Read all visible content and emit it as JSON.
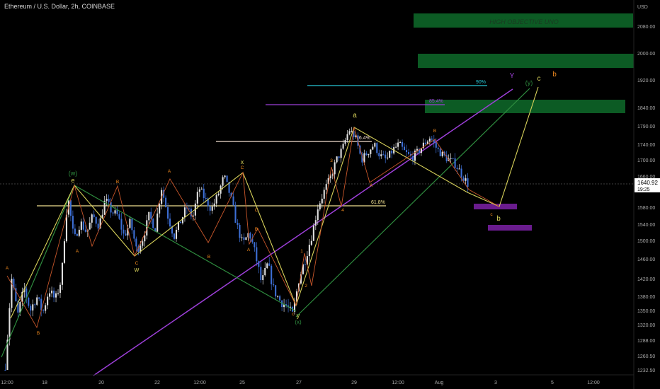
{
  "header": {
    "symbol_title": "Ethereum / U.S. Dollar, 2h, COINBASE",
    "currency": "USD"
  },
  "price_tag": {
    "price": "1640.92",
    "countdown": "19:25"
  },
  "colors": {
    "background": "#000000",
    "up": "#e0e0e0",
    "down": "#3d6fd6",
    "orange": "#f28a1e",
    "yellow": "#d8d25a",
    "green_line": "#2e8b3e",
    "purple": "#9c3fd8",
    "cyan": "#27c6d6",
    "zone_green": "#0e6b2a",
    "zone_purple": "#6a1c8e"
  },
  "chart_data": {
    "type": "candlestick",
    "title": "Ethereum / U.S. Dollar, 2h, COINBASE",
    "y_axis": {
      "unit": "USD",
      "ticks": [
        "2080.00",
        "2000.00",
        "1920.00",
        "1840.00",
        "1790.00",
        "1740.00",
        "1700.00",
        "1660.00",
        "1580.00",
        "1540.00",
        "1500.00",
        "1460.00",
        "1420.00",
        "1380.00",
        "1350.00",
        "1320.00",
        "1288.00",
        "1260.50",
        "1232.50"
      ]
    },
    "x_axis": {
      "ticks": [
        "12:00",
        "18",
        "20",
        "22",
        "12:00",
        "25",
        "27",
        "29",
        "12:00",
        "Aug",
        "3",
        "5",
        "12:00"
      ]
    },
    "last_price": 1640.92,
    "path_points": [
      1232,
      1420,
      1340,
      1398,
      1350,
      1380,
      1345,
      1395,
      1372,
      1420,
      1610,
      1500,
      1545,
      1520,
      1560,
      1536,
      1600,
      1570,
      1560,
      1510,
      1545,
      1478,
      1505,
      1560,
      1530,
      1630,
      1560,
      1510,
      1545,
      1580,
      1555,
      1630,
      1600,
      1575,
      1610,
      1660,
      1610,
      1540,
      1490,
      1520,
      1470,
      1410,
      1450,
      1392,
      1370,
      1360,
      1340,
      1420,
      1460,
      1510,
      1580,
      1620,
      1655,
      1700,
      1730,
      1780,
      1760,
      1700,
      1720,
      1740,
      1710,
      1700,
      1725,
      1740,
      1718,
      1705,
      1720,
      1740,
      1760,
      1730,
      1712,
      1700,
      1690,
      1665,
      1640
    ],
    "annotations": {
      "wave_labels": [
        "(w)",
        "e",
        "w",
        "x",
        "c",
        "y",
        "(x)",
        "a",
        "(y)",
        "c",
        "b",
        "Y",
        "b"
      ],
      "minor_labels": [
        "A",
        "B",
        "A",
        "B",
        "C",
        "A",
        "B",
        "C",
        "A",
        "B",
        "C",
        "A",
        "B",
        "C",
        "1",
        "2",
        "3",
        "4",
        "4",
        "5",
        "A",
        "B",
        "C",
        "c"
      ],
      "level_labels": [
        "61.8%",
        "76.4%",
        "85.4%",
        "90%"
      ],
      "target_zone": "HIGH OBJECTIVE UNO"
    }
  }
}
